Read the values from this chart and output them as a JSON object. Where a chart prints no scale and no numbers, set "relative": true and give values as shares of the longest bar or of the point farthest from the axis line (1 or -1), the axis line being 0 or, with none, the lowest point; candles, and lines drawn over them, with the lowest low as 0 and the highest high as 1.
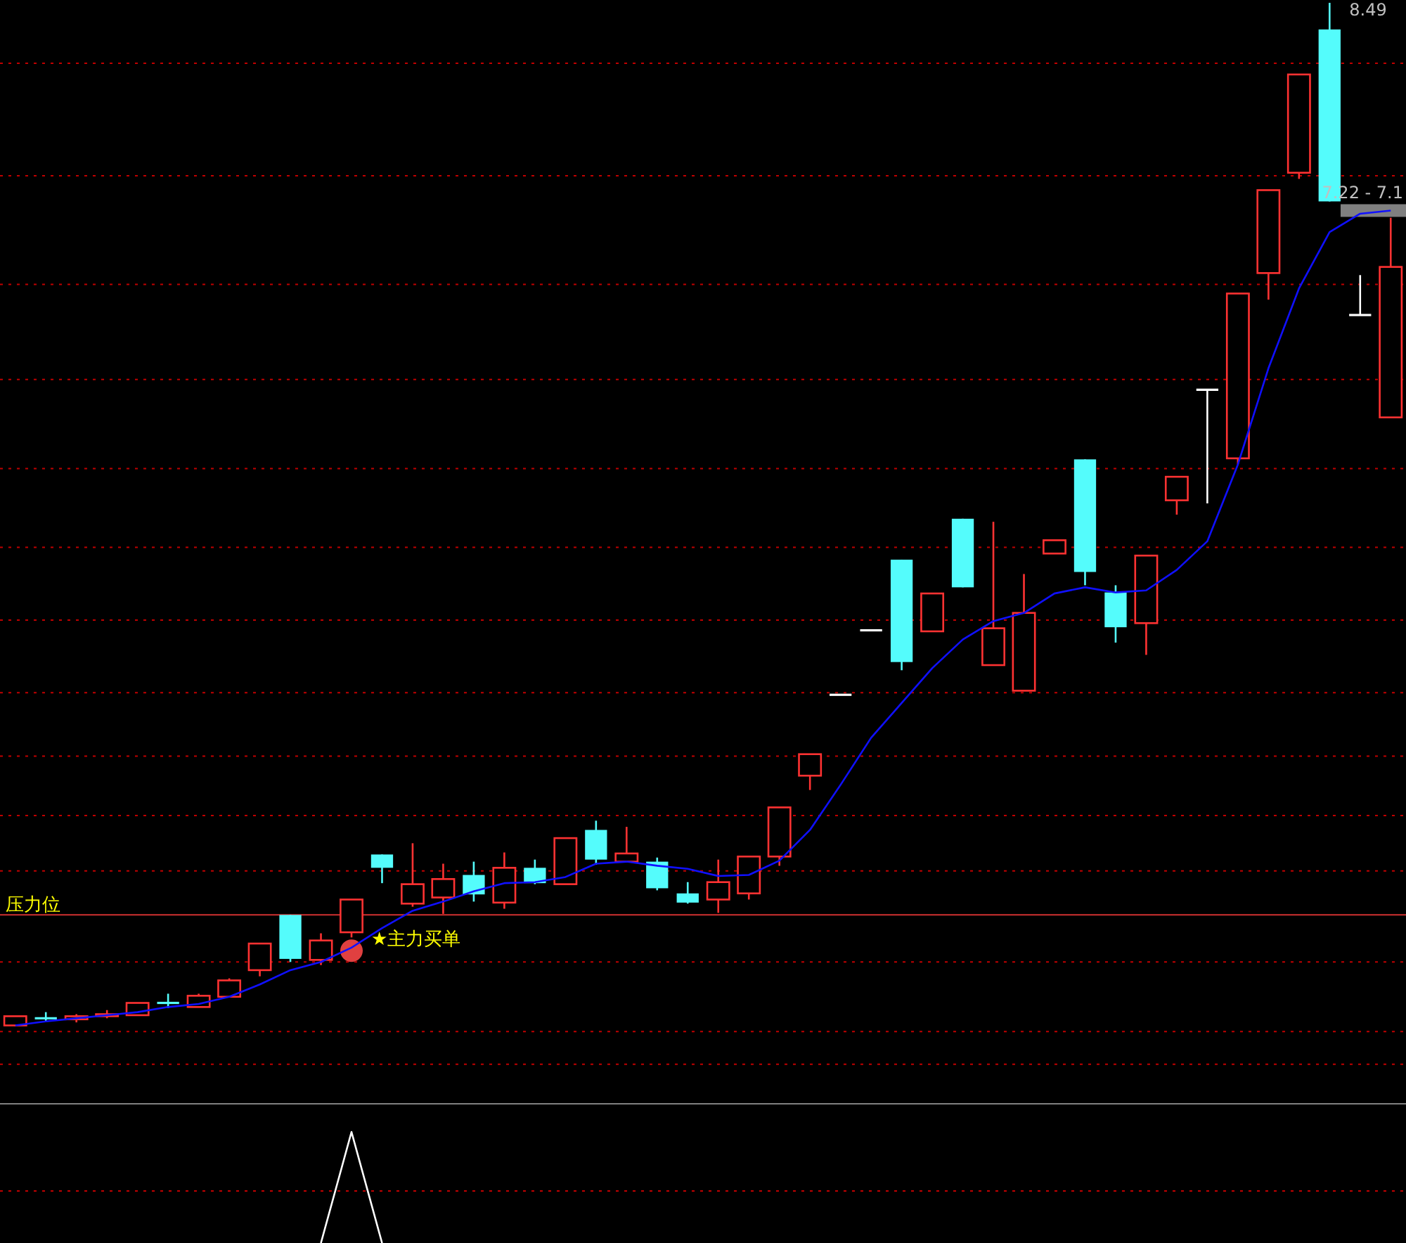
{
  "chart_data": [
    {
      "type": "candlestick",
      "relative": true,
      "categories": [
        null,
        null,
        null,
        null,
        null,
        null,
        null,
        null,
        null,
        null,
        null,
        null,
        null,
        null,
        null,
        null,
        null,
        null,
        null,
        null,
        null,
        null,
        null,
        null,
        null,
        null,
        null,
        null,
        null,
        null,
        null,
        null,
        null,
        null,
        null,
        null,
        null,
        null,
        null,
        null,
        null,
        null,
        null,
        null,
        null,
        null
      ],
      "ohlc": [
        [
          0.001,
          0.01,
          0,
          0.01
        ],
        [
          0.008,
          0.014,
          0.005,
          0.008
        ],
        [
          0.007,
          0.012,
          0.004,
          0.01
        ],
        [
          0.01,
          0.016,
          0.008,
          0.012
        ],
        [
          0.011,
          0.023,
          0.011,
          0.023
        ],
        [
          0.023,
          0.032,
          0.018,
          0.023
        ],
        [
          0.019,
          0.032,
          0.019,
          0.03
        ],
        [
          0.029,
          0.047,
          0.029,
          0.045
        ],
        [
          0.055,
          0.081,
          0.049,
          0.081
        ],
        [
          0.109,
          0.109,
          0.063,
          0.066
        ],
        [
          0.065,
          0.091,
          0.06,
          0.084
        ],
        [
          0.092,
          0.124,
          0.087,
          0.124
        ],
        [
          0.168,
          0.168,
          0.14,
          0.155
        ],
        [
          0.12,
          0.179,
          0.117,
          0.139
        ],
        [
          0.126,
          0.159,
          0.11,
          0.144
        ],
        [
          0.148,
          0.161,
          0.122,
          0.129
        ],
        [
          0.121,
          0.17,
          0.115,
          0.155
        ],
        [
          0.155,
          0.163,
          0.139,
          0.14
        ],
        [
          0.139,
          0.184,
          0.139,
          0.184
        ],
        [
          0.192,
          0.201,
          0.158,
          0.163
        ],
        [
          0.161,
          0.195,
          0.161,
          0.169
        ],
        [
          0.161,
          0.165,
          0.133,
          0.135
        ],
        [
          0.13,
          0.141,
          0.12,
          0.121
        ],
        [
          0.124,
          0.163,
          0.111,
          0.141
        ],
        [
          0.13,
          0.166,
          0.124,
          0.166
        ],
        [
          0.166,
          0.214,
          0.157,
          0.214
        ],
        [
          0.245,
          0.266,
          0.231,
          0.266
        ],
        [
          0.324,
          0.324,
          0.324,
          0.324
        ],
        [
          0.387,
          0.387,
          0.387,
          0.387
        ],
        [
          0.456,
          0.456,
          0.348,
          0.356
        ],
        [
          0.386,
          0.423,
          0.386,
          0.423
        ],
        [
          0.496,
          0.496,
          0.429,
          0.429
        ],
        [
          0.353,
          0.493,
          0.353,
          0.389
        ],
        [
          0.328,
          0.442,
          0.328,
          0.404
        ],
        [
          0.462,
          0.475,
          0.462,
          0.475
        ],
        [
          0.554,
          0.554,
          0.431,
          0.444
        ],
        [
          0.424,
          0.431,
          0.375,
          0.39
        ],
        [
          0.394,
          0.46,
          0.363,
          0.46
        ],
        [
          0.514,
          0.537,
          0.5,
          0.537
        ],
        [
          0.622,
          0.622,
          0.511,
          0.622
        ],
        [
          0.555,
          0.716,
          0.549,
          0.716
        ],
        [
          0.736,
          0.817,
          0.71,
          0.817
        ],
        [
          0.834,
          0.93,
          0.828,
          0.93
        ],
        [
          0.974,
          1,
          0.806,
          0.806
        ],
        [
          0.695,
          0.734,
          0.695,
          0.695
        ],
        [
          0.595,
          0.79,
          0.595,
          0.742
        ]
      ],
      "colors": [
        "#ff3232",
        "#54fcfc",
        "#ff3232",
        "#ff3232",
        "#ff3232",
        "#54fcfc",
        "#ff3232",
        "#ff3232",
        "#ff3232",
        "#54fcfc",
        "#ff3232",
        "#ff3232",
        "#54fcfc",
        "#ff3232",
        "#ff3232",
        "#54fcfc",
        "#ff3232",
        "#54fcfc",
        "#ff3232",
        "#54fcfc",
        "#ff3232",
        "#54fcfc",
        "#54fcfc",
        "#ff3232",
        "#ff3232",
        "#ff3232",
        "#ff3232",
        "#ffffff",
        "#ffffff",
        "#54fcfc",
        "#ff3232",
        "#54fcfc",
        "#ff3232",
        "#ff3232",
        "#ff3232",
        "#54fcfc",
        "#54fcfc",
        "#ff3232",
        "#ff3232",
        "#ffffff",
        "#ff3232",
        "#ff3232",
        "#ff3232",
        "#54fcfc",
        "#ffffff",
        "#ff3232"
      ],
      "series": [
        {
          "type": "line",
          "color": "#1010ff",
          "values": [
            0.001,
            0.005,
            0.008,
            0.011,
            0.014,
            0.019,
            0.022,
            0.029,
            0.041,
            0.055,
            0.063,
            0.077,
            0.096,
            0.113,
            0.122,
            0.132,
            0.14,
            0.141,
            0.146,
            0.159,
            0.161,
            0.157,
            0.154,
            0.147,
            0.148,
            0.162,
            0.192,
            0.236,
            0.282,
            0.316,
            0.35,
            0.378,
            0.396,
            0.404,
            0.423,
            0.429,
            0.424,
            0.426,
            0.446,
            0.474,
            0.549,
            0.643,
            0.721,
            0.776,
            0.794,
            0.797
          ]
        },
        {
          "type": "scatter",
          "name": "★主力买单",
          "color": "#e04040",
          "values": [
            null,
            null,
            null,
            null,
            null,
            null,
            null,
            null,
            null,
            null,
            null,
            0.074,
            null,
            null,
            null,
            null,
            null,
            null,
            null,
            null,
            null,
            null,
            null,
            null,
            null,
            null,
            null,
            null,
            null,
            null,
            null,
            null,
            null,
            null,
            null,
            null,
            null,
            null,
            null,
            null,
            null,
            null,
            null,
            null,
            null,
            null
          ]
        }
      ],
      "ref_lines": [
        {
          "axis": "y",
          "value": 0.941,
          "color": "#c00000",
          "line_style": "dotted"
        },
        {
          "axis": "y",
          "value": 0.831,
          "color": "#c00000",
          "line_style": "dotted"
        },
        {
          "axis": "y",
          "value": 0.725,
          "color": "#c00000",
          "line_style": "dotted"
        },
        {
          "axis": "y",
          "value": 0.632,
          "color": "#c00000",
          "line_style": "dotted"
        },
        {
          "axis": "y",
          "value": 0.545,
          "color": "#c00000",
          "line_style": "dotted"
        },
        {
          "axis": "y",
          "value": 0.468,
          "color": "#c00000",
          "line_style": "dotted"
        },
        {
          "axis": "y",
          "value": 0.397,
          "color": "#c00000",
          "line_style": "dotted"
        },
        {
          "axis": "y",
          "value": 0.326,
          "color": "#c00000",
          "line_style": "dotted"
        },
        {
          "axis": "y",
          "value": 0.264,
          "color": "#c00000",
          "line_style": "dotted"
        },
        {
          "axis": "y",
          "value": 0.206,
          "color": "#c00000",
          "line_style": "dotted"
        },
        {
          "axis": "y",
          "value": 0.152,
          "color": "#c00000",
          "line_style": "dotted"
        },
        {
          "axis": "y",
          "value": 0.063,
          "color": "#c00000",
          "line_style": "dotted"
        },
        {
          "axis": "y",
          "value": -0.005,
          "color": "#c00000",
          "line_style": "dotted"
        },
        {
          "axis": "y",
          "value": -0.037,
          "color": "#c00000",
          "line_style": "dotted"
        },
        {
          "axis": "y",
          "value": 0.109,
          "label": "压力位",
          "color": "#d03030",
          "line_style": "solid"
        }
      ],
      "annotations": [
        "8.49",
        "7.22 - 7.1"
      ]
    },
    {
      "type": "line",
      "relative": true,
      "categories": [
        null,
        null,
        null,
        null,
        null,
        null,
        null,
        null,
        null,
        null,
        null,
        null,
        null,
        null,
        null,
        null,
        null,
        null,
        null,
        null,
        null,
        null,
        null,
        null,
        null,
        null,
        null,
        null,
        null,
        null,
        null,
        null,
        null,
        null,
        null,
        null,
        null,
        null,
        null,
        null,
        null,
        null,
        null,
        null,
        null,
        null
      ],
      "series": [
        {
          "color": "#ffffff",
          "values": [
            null,
            null,
            null,
            null,
            null,
            null,
            null,
            null,
            null,
            null,
            0,
            1,
            0,
            null,
            null,
            null,
            null,
            null,
            null,
            null,
            null,
            null,
            null,
            null,
            null,
            null,
            null,
            null,
            null,
            null,
            null,
            null,
            null,
            null,
            null,
            null,
            null,
            null,
            null,
            null,
            null,
            null,
            null,
            null,
            null,
            null
          ]
        }
      ],
      "ref_lines": [
        {
          "axis": "y",
          "value": 0.468,
          "color": "#c00000",
          "line_style": "dotted"
        }
      ]
    }
  ]
}
